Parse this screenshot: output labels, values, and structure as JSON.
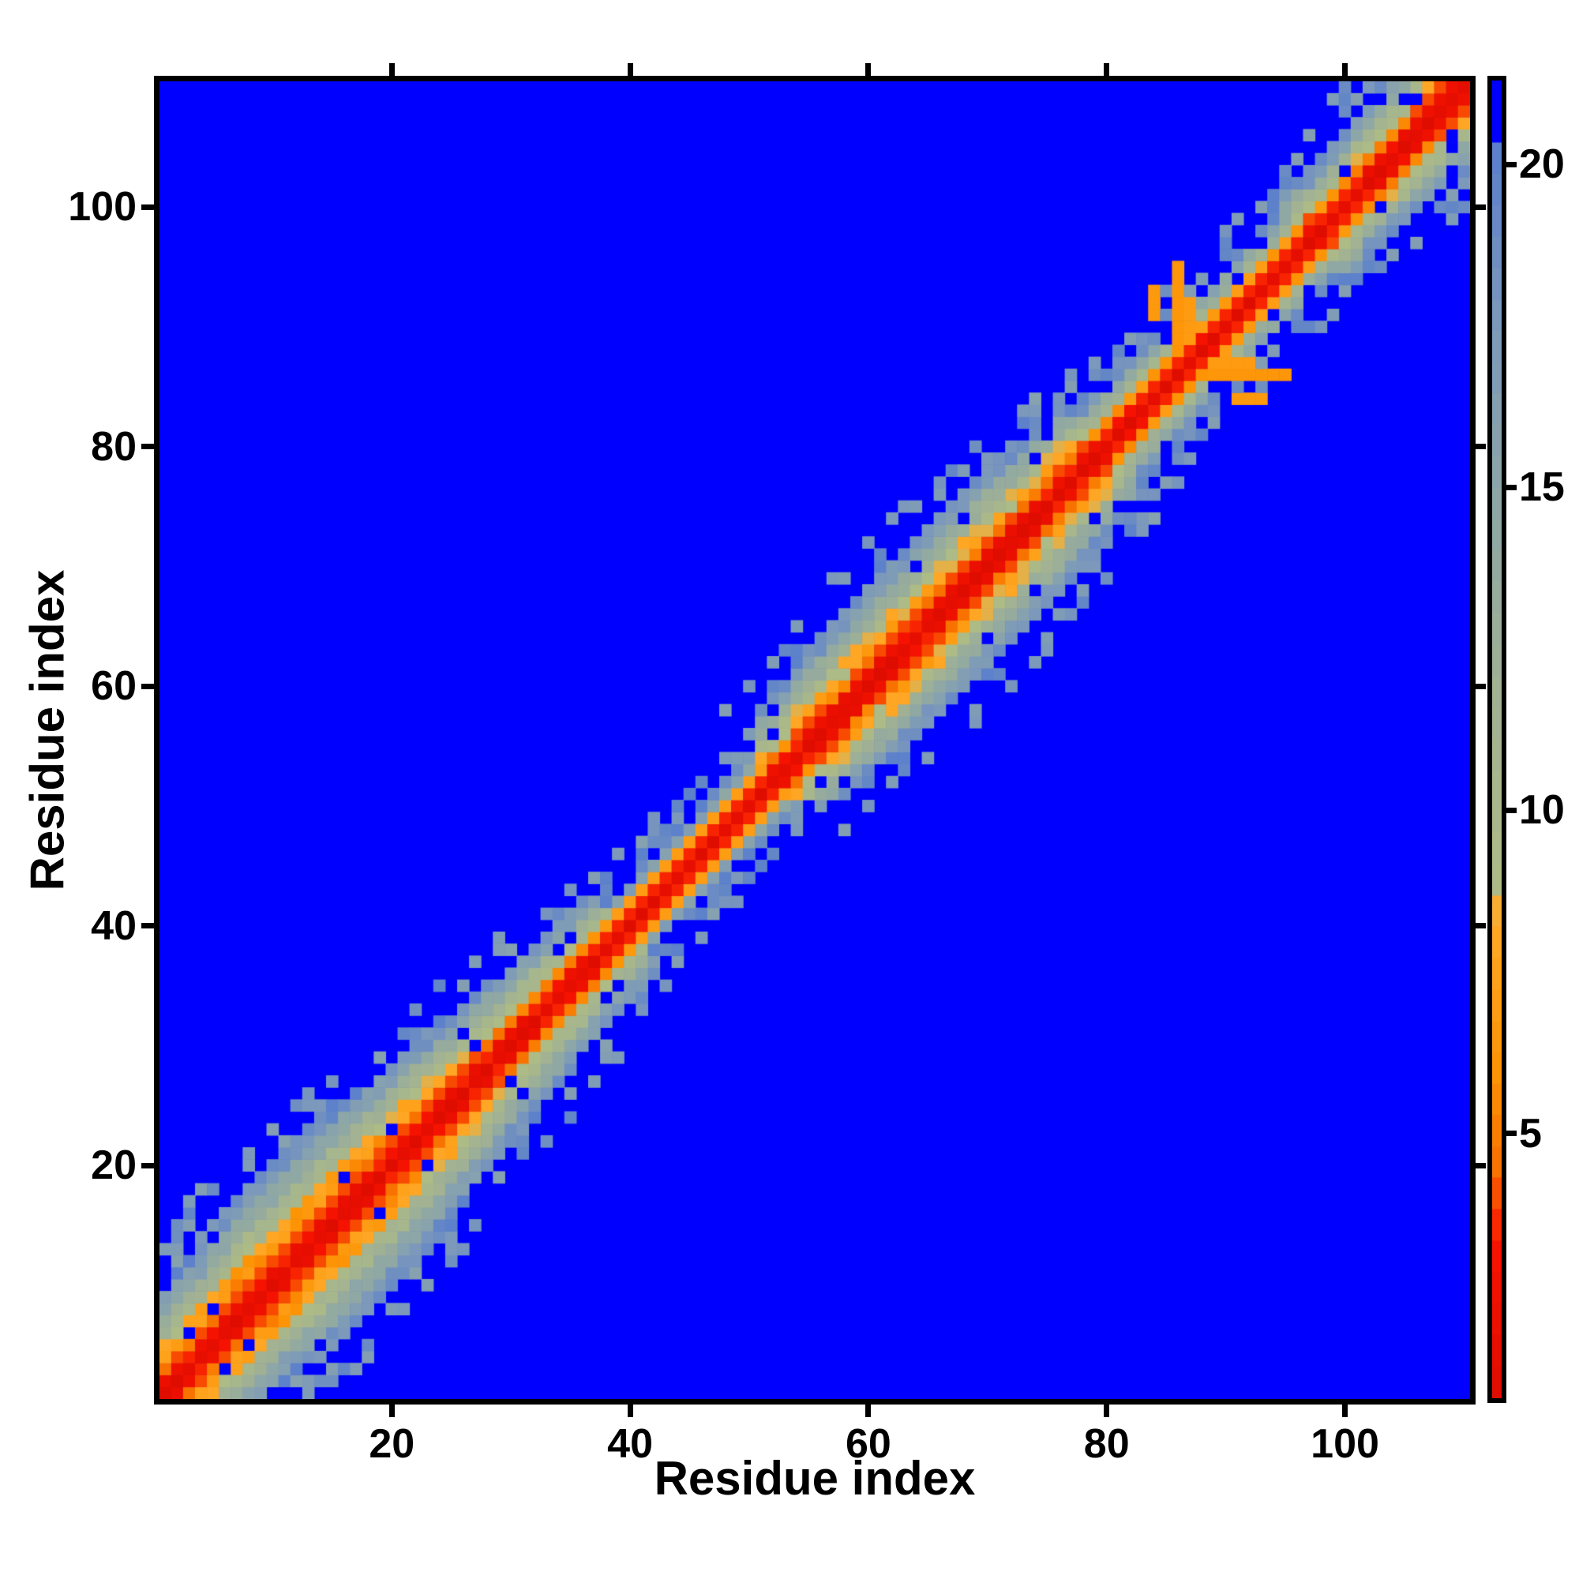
{
  "figure": {
    "background_color": "#ffffff",
    "axis_color": "#000000"
  },
  "chart_data": {
    "type": "heatmap",
    "title": "",
    "xlabel": "Residue index",
    "ylabel": "Residue index",
    "n_residues": 110,
    "x_range": [
      1,
      110
    ],
    "y_range": [
      1,
      110
    ],
    "x_ticks": [
      20,
      40,
      60,
      80,
      100
    ],
    "y_ticks": [
      20,
      40,
      60,
      80,
      100
    ],
    "grid": false,
    "background_value_color": "#0000ff",
    "colorbar": {
      "position": "right",
      "ticks": [
        5,
        10,
        15,
        20
      ],
      "vmin": 0.9,
      "vmax": 21.3,
      "blue_clip": 20.35,
      "steps": 42
    },
    "colormap_stops": [
      [
        0.9,
        "#de0c00"
      ],
      [
        3.3,
        "#f81300"
      ],
      [
        4.5,
        "#f87200"
      ],
      [
        6.0,
        "#fd9405"
      ],
      [
        8.4,
        "#ffaa2a"
      ],
      [
        8.7,
        "#aebc85"
      ],
      [
        11.5,
        "#a2b292"
      ],
      [
        14.5,
        "#90a8a4"
      ],
      [
        17.5,
        "#7c99bb"
      ],
      [
        20.1,
        "#5c80cb"
      ],
      [
        20.35,
        "#0505f5"
      ],
      [
        21.3,
        "#0000ff"
      ]
    ],
    "pattern": {
      "description": "Symmetric residue-residue distance map (~110 residues): red core on the diagonal (|i-j|<=1), checkered orange flanks (|i-j| 2-3), grey-green band out to a half-width of ~6-10 residues, steel-blue fringe speckles, pure blue background (distances beyond ~20.3). Band half-width varies along the chain, with narrower noisy stretches near residues 40-52, 80-97 and 99-110, scattered blue holes inside the band, and an orange off-diagonal hook (contacts ~6-7) around residues 84-95.",
      "base_halfwidth": 8.8,
      "halfwidth_wave1": {
        "amplitude": 1.6,
        "period": 8.5
      },
      "halfwidth_wave2": {
        "amplitude": 1.2,
        "period": 23,
        "phase": 2
      },
      "narrow_regions": [
        [
          1,
          8,
          0.9
        ],
        [
          40,
          52,
          0.62
        ],
        [
          80,
          97,
          0.78
        ],
        [
          99,
          110,
          0.85
        ]
      ],
      "checker_amplitude": 0.6,
      "noise_amplitude": 1.2,
      "hole_probability_base": 0.035,
      "hole_probability_disordered": 0.1,
      "disordered_regions": [
        [
          1,
          12
        ],
        [
          36,
          54
        ],
        [
          76,
          97
        ],
        [
          99,
          110
        ]
      ],
      "fringe_width": 3,
      "fringe_speckle_probability": 0.25,
      "features": [
        {
          "i": 86,
          "j_from": 89,
          "j_to": 95,
          "value": 6.2
        },
        {
          "i": 87,
          "j_from": 89,
          "j_to": 92,
          "value": 6.8
        },
        {
          "i": 84,
          "j_from": 91,
          "j_to": 93,
          "value": 6.5
        }
      ],
      "random_seed": 1337
    }
  }
}
